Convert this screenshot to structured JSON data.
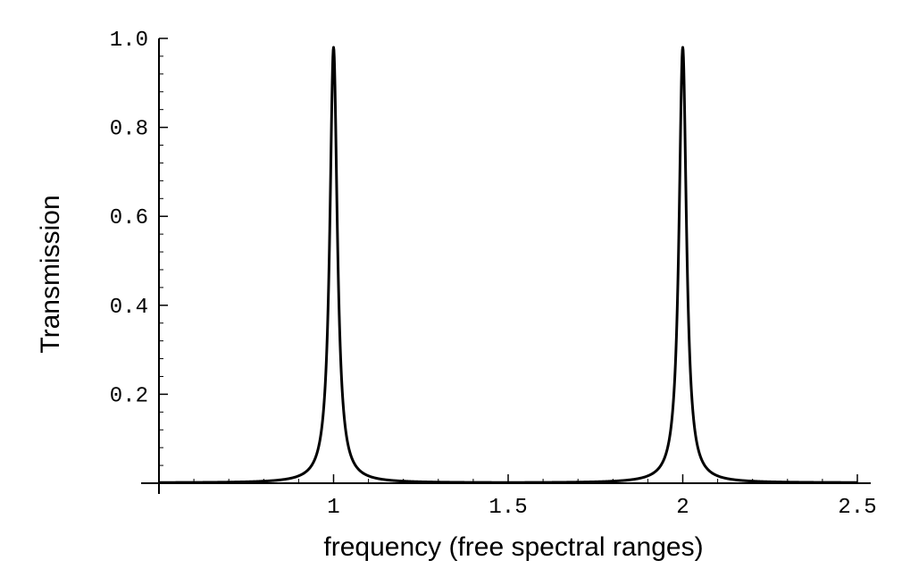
{
  "chart_data": {
    "type": "line",
    "title": "",
    "xlabel": "frequency (free spectral ranges)",
    "ylabel": "Transmission",
    "xlim": [
      0.5,
      2.5
    ],
    "ylim": [
      0,
      1.0
    ],
    "xticks": [
      {
        "value": 1,
        "label": "1"
      },
      {
        "value": 1.5,
        "label": "1.5"
      },
      {
        "value": 2,
        "label": "2"
      },
      {
        "value": 2.5,
        "label": "2.5"
      }
    ],
    "yticks": [
      {
        "value": 0.2,
        "label": "0.2"
      },
      {
        "value": 0.4,
        "label": "0.4"
      },
      {
        "value": 0.6,
        "label": "0.6"
      },
      {
        "value": 0.8,
        "label": "0.8"
      },
      {
        "value": 1.0,
        "label": "1.0"
      }
    ],
    "grid": false,
    "legend": "none",
    "series": [
      {
        "x": [
          0.5,
          0.55,
          0.6,
          0.65,
          0.7,
          0.75,
          0.8,
          0.85,
          0.88,
          0.9,
          0.92,
          0.94,
          0.95,
          0.96,
          0.97,
          0.98,
          0.99,
          1.0,
          1.01,
          1.02,
          1.03,
          1.04,
          1.05,
          1.06,
          1.08,
          1.1,
          1.12,
          1.15,
          1.2,
          1.25,
          1.3,
          1.35,
          1.4,
          1.45,
          1.5,
          1.55,
          1.6,
          1.65,
          1.7,
          1.75,
          1.8,
          1.85,
          1.88,
          1.9,
          1.92,
          1.94,
          1.95,
          1.96,
          1.97,
          1.98,
          1.99,
          2.0,
          2.01,
          2.02,
          2.03,
          2.04,
          2.05,
          2.06,
          2.08,
          2.1,
          2.12,
          2.15,
          2.2,
          2.25,
          2.3,
          2.35,
          2.4,
          2.45,
          2.5
        ],
        "y": [
          0.0016,
          0.002,
          0.0027,
          0.0038,
          0.0059,
          0.0097,
          0.017,
          0.036,
          0.061,
          0.089,
          0.137,
          0.225,
          0.295,
          0.391,
          0.519,
          0.676,
          0.834,
          0.98,
          0.834,
          0.676,
          0.519,
          0.391,
          0.295,
          0.225,
          0.137,
          0.089,
          0.061,
          0.036,
          0.017,
          0.0097,
          0.0059,
          0.0038,
          0.0027,
          0.002,
          0.0016,
          0.002,
          0.0027,
          0.0038,
          0.0059,
          0.0097,
          0.017,
          0.036,
          0.061,
          0.089,
          0.137,
          0.225,
          0.295,
          0.391,
          0.519,
          0.676,
          0.834,
          0.98,
          0.834,
          0.676,
          0.519,
          0.391,
          0.295,
          0.225,
          0.137,
          0.089,
          0.061,
          0.036,
          0.017,
          0.0097,
          0.0059,
          0.0038,
          0.0027,
          0.002,
          0.0016
        ],
        "color": "#000000"
      }
    ]
  }
}
